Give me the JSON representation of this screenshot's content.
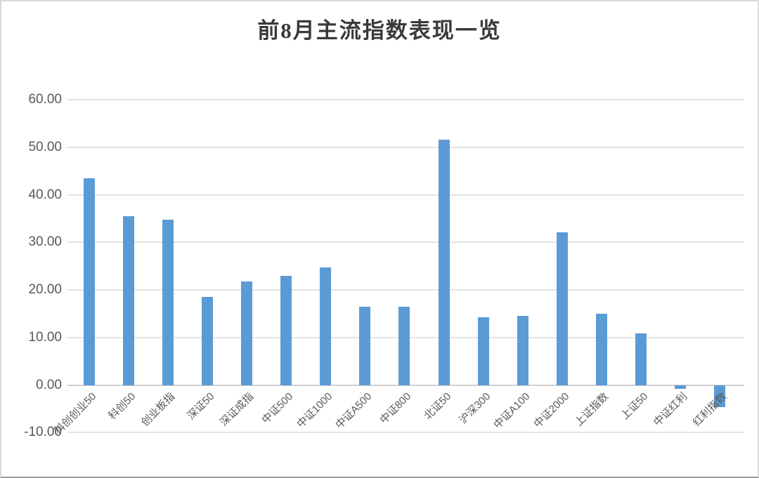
{
  "chart_data": {
    "type": "bar",
    "title": "前8月主流指数表现一览",
    "categories": [
      "科创创业50",
      "科创50",
      "创业板指",
      "深证50",
      "深证成指",
      "中证500",
      "中证1000",
      "中证A500",
      "中证800",
      "北证50",
      "沪深300",
      "中证A100",
      "中证2000",
      "上证指数",
      "上证50",
      "中证红利",
      "红利指数"
    ],
    "values": [
      43.4,
      35.5,
      34.8,
      18.6,
      21.8,
      22.9,
      24.7,
      16.4,
      16.5,
      51.6,
      14.3,
      14.5,
      32.1,
      15.0,
      10.8,
      -0.8,
      -4.6
    ],
    "xlabel": "",
    "ylabel": "",
    "ylim": [
      -10,
      60
    ],
    "yticks": [
      60,
      50,
      40,
      30,
      20,
      10,
      0,
      -10
    ],
    "ytick_labels": [
      "60.00",
      "50.00",
      "40.00",
      "30.00",
      "20.00",
      "10.00",
      "0.00",
      "-10.00"
    ],
    "grid": true,
    "legend": "none",
    "colors": {
      "bar": "#5B9BD5",
      "gridline": "#E3E3E3",
      "zero_line": "#D0D0D0",
      "axis_text": "#595959",
      "title_text": "#3A3A3A",
      "background": "#FFFFFF"
    }
  }
}
